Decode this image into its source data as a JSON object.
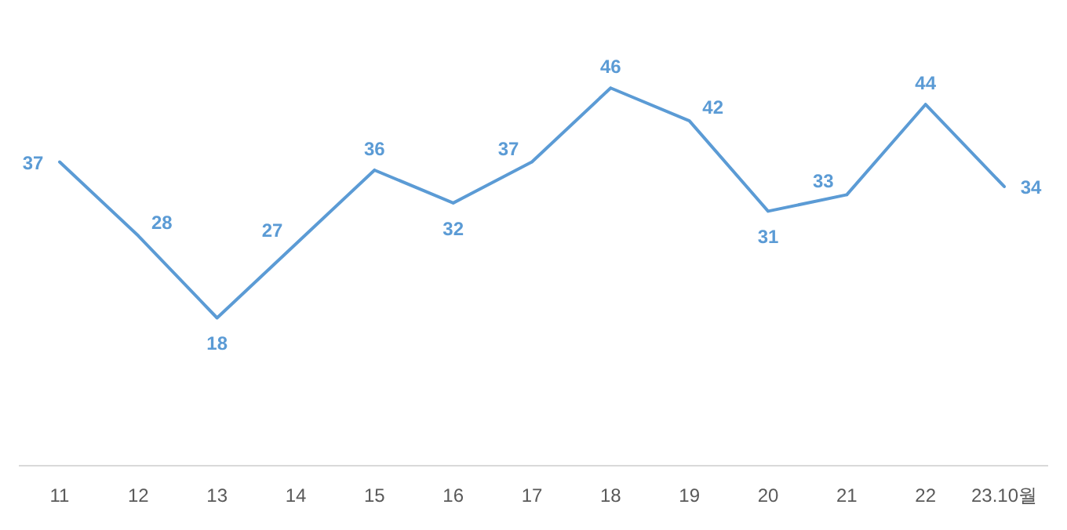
{
  "chart_data": {
    "type": "line",
    "categories": [
      "11",
      "12",
      "13",
      "14",
      "15",
      "16",
      "17",
      "18",
      "19",
      "20",
      "21",
      "22",
      "23.10월"
    ],
    "series": [
      {
        "color": "#5b9bd5",
        "values": [
          37,
          28,
          18,
          27,
          36,
          32,
          37,
          46,
          42,
          31,
          33,
          44,
          34
        ]
      }
    ],
    "data_labels": true
  }
}
